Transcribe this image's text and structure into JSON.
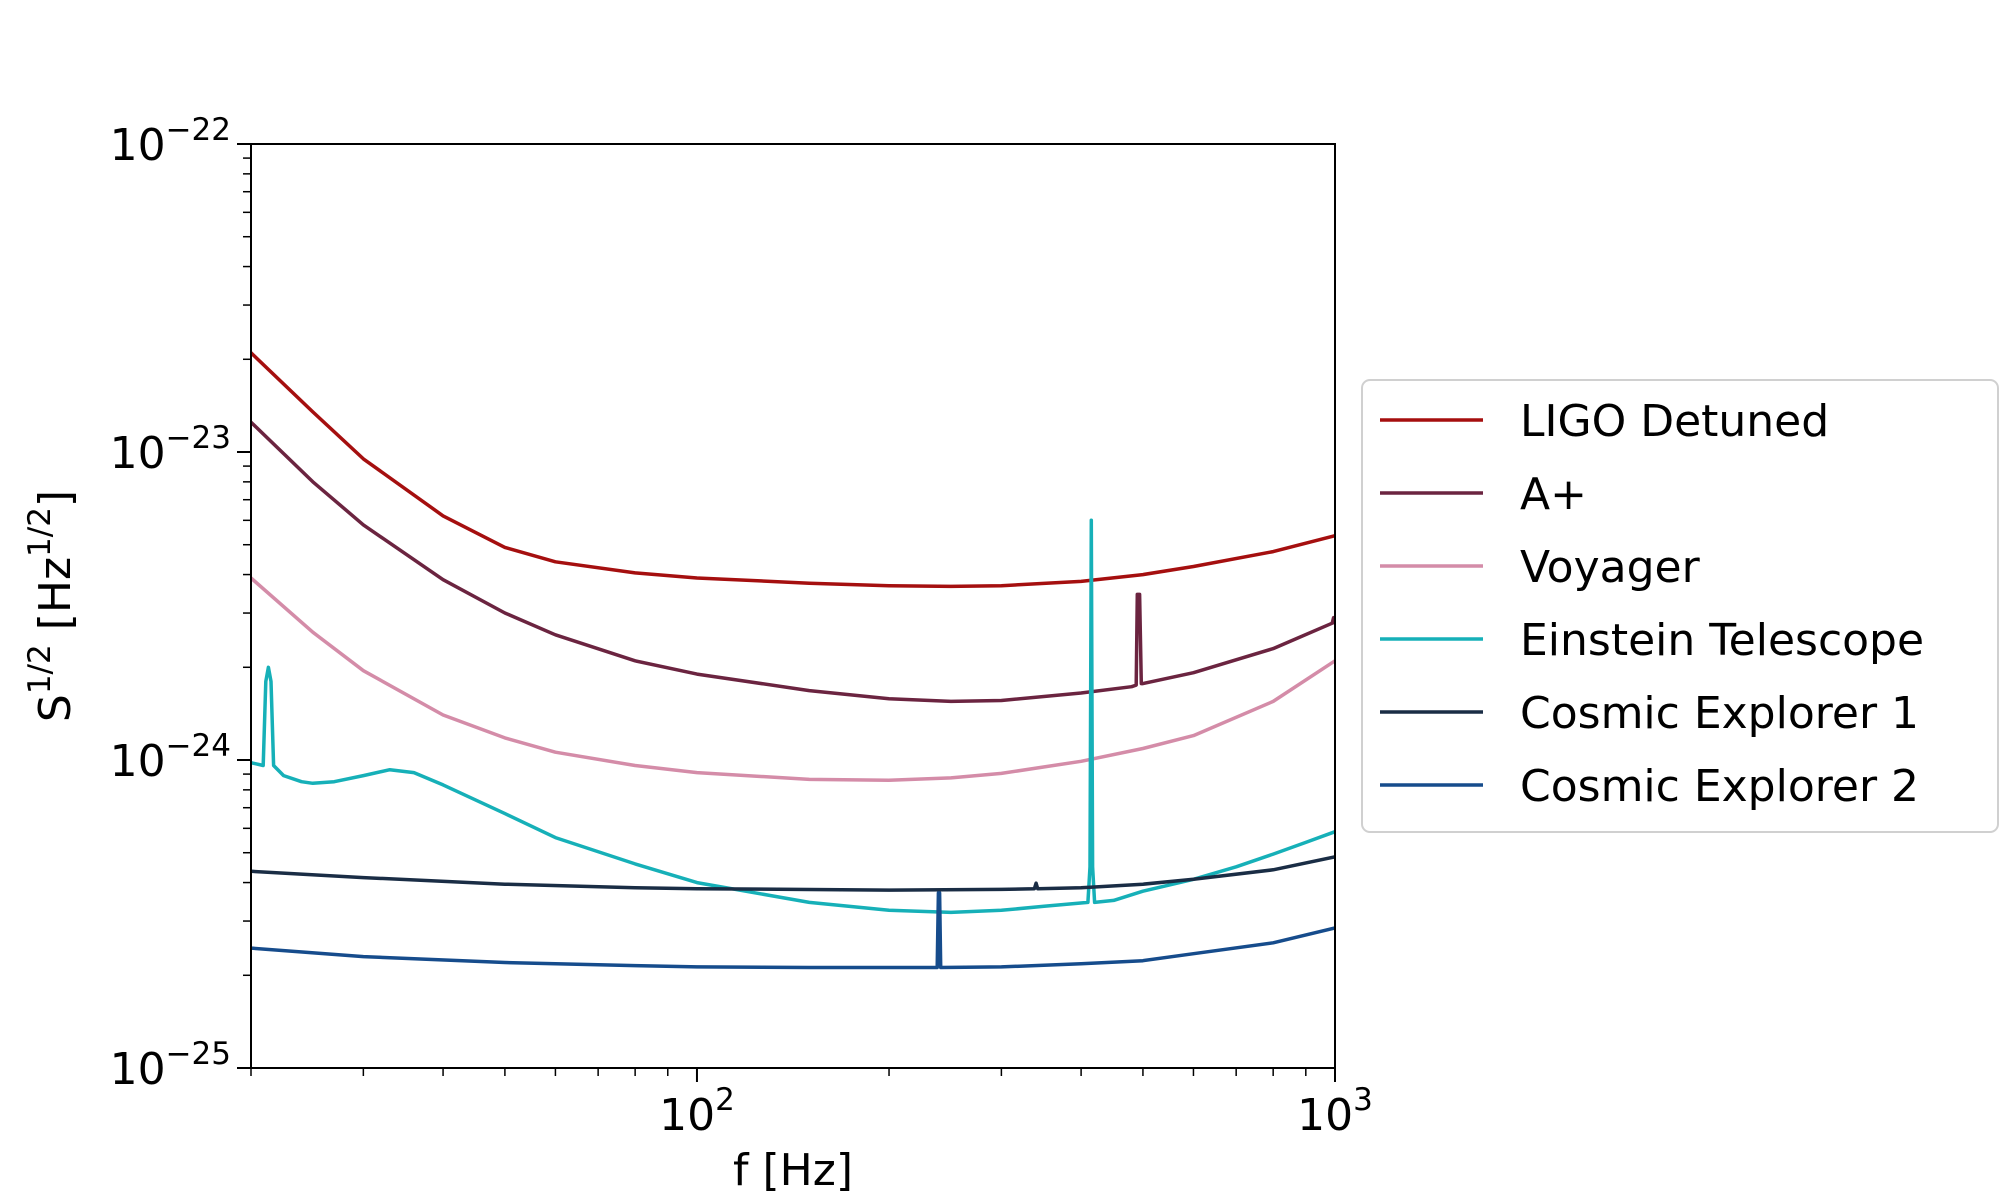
{
  "chart_data": {
    "type": "line",
    "title": "",
    "xlabel": "f [Hz]",
    "ylabel": {
      "base": "S",
      "sup": "1/2",
      "unit_open": " [Hz",
      "unit_sup": "1/2",
      "unit_close": "]"
    },
    "xscale": "log",
    "yscale": "log",
    "xlim": [
      20,
      1000
    ],
    "ylim": [
      1e-25,
      1e-22
    ],
    "grid": false,
    "legend_position": "right-outside",
    "x_ticks": [
      {
        "value": 100,
        "base": "10",
        "exp": "2"
      },
      {
        "value": 1000,
        "base": "10",
        "exp": "3"
      }
    ],
    "y_ticks": [
      {
        "value": 1e-22,
        "base": "10",
        "exp": "−22"
      },
      {
        "value": 1e-23,
        "base": "10",
        "exp": "−23"
      },
      {
        "value": 1e-24,
        "base": "10",
        "exp": "−24"
      },
      {
        "value": 1e-25,
        "base": "10",
        "exp": "−25"
      }
    ],
    "series": [
      {
        "name": "LIGO Detuned",
        "color": "#a50f0f",
        "points": [
          [
            20,
            2.1e-23
          ],
          [
            25,
            1.35e-23
          ],
          [
            30,
            9.5e-24
          ],
          [
            40,
            6.2e-24
          ],
          [
            50,
            4.9e-24
          ],
          [
            60,
            4.4e-24
          ],
          [
            80,
            4.05e-24
          ],
          [
            100,
            3.9e-24
          ],
          [
            150,
            3.75e-24
          ],
          [
            200,
            3.68e-24
          ],
          [
            250,
            3.66e-24
          ],
          [
            300,
            3.68e-24
          ],
          [
            400,
            3.8e-24
          ],
          [
            500,
            4e-24
          ],
          [
            600,
            4.25e-24
          ],
          [
            800,
            4.75e-24
          ],
          [
            1000,
            5.35e-24
          ]
        ]
      },
      {
        "name": "A+",
        "color": "#6b2440",
        "points": [
          [
            20,
            1.25e-23
          ],
          [
            25,
            8e-24
          ],
          [
            30,
            5.8e-24
          ],
          [
            40,
            3.85e-24
          ],
          [
            50,
            3e-24
          ],
          [
            60,
            2.55e-24
          ],
          [
            80,
            2.1e-24
          ],
          [
            100,
            1.9e-24
          ],
          [
            150,
            1.68e-24
          ],
          [
            200,
            1.58e-24
          ],
          [
            250,
            1.55e-24
          ],
          [
            300,
            1.56e-24
          ],
          [
            400,
            1.65e-24
          ],
          [
            480,
            1.73e-24
          ],
          [
            488,
            1.75e-24
          ],
          [
            490,
            3.45e-24
          ],
          [
            494,
            3.45e-24
          ],
          [
            497,
            1.77e-24
          ],
          [
            500,
            1.77e-24
          ],
          [
            600,
            1.92e-24
          ],
          [
            800,
            2.3e-24
          ],
          [
            990,
            2.78e-24
          ],
          [
            995,
            2.9e-24
          ],
          [
            1000,
            2.78e-24
          ]
        ]
      },
      {
        "name": "Voyager",
        "color": "#d48ca8",
        "points": [
          [
            20,
            3.9e-24
          ],
          [
            25,
            2.6e-24
          ],
          [
            30,
            1.95e-24
          ],
          [
            40,
            1.4e-24
          ],
          [
            50,
            1.18e-24
          ],
          [
            60,
            1.06e-24
          ],
          [
            80,
            9.6e-25
          ],
          [
            100,
            9.1e-25
          ],
          [
            150,
            8.65e-25
          ],
          [
            200,
            8.6e-25
          ],
          [
            250,
            8.75e-25
          ],
          [
            300,
            9.05e-25
          ],
          [
            400,
            9.9e-25
          ],
          [
            500,
            1.09e-24
          ],
          [
            600,
            1.2e-24
          ],
          [
            800,
            1.55e-24
          ],
          [
            1000,
            2.1e-24
          ]
        ]
      },
      {
        "name": "Einstein Telescope",
        "color": "#16b0b8",
        "points": [
          [
            20,
            9.8e-25
          ],
          [
            20.9,
            9.6e-25
          ],
          [
            21.1,
            1.8e-24
          ],
          [
            21.3,
            2e-24
          ],
          [
            21.5,
            1.8e-24
          ],
          [
            21.7,
            9.6e-25
          ],
          [
            22.5,
            8.9e-25
          ],
          [
            24,
            8.5e-25
          ],
          [
            25,
            8.4e-25
          ],
          [
            27,
            8.5e-25
          ],
          [
            30,
            8.9e-25
          ],
          [
            33,
            9.3e-25
          ],
          [
            36,
            9.1e-25
          ],
          [
            40,
            8.3e-25
          ],
          [
            50,
            6.7e-25
          ],
          [
            60,
            5.6e-25
          ],
          [
            80,
            4.6e-25
          ],
          [
            100,
            4e-25
          ],
          [
            150,
            3.45e-25
          ],
          [
            200,
            3.25e-25
          ],
          [
            250,
            3.2e-25
          ],
          [
            300,
            3.25e-25
          ],
          [
            350,
            3.35e-25
          ],
          [
            410,
            3.45e-25
          ],
          [
            413,
            4.5e-25
          ],
          [
            415,
            6e-24
          ],
          [
            417,
            4.5e-25
          ],
          [
            420,
            3.45e-25
          ],
          [
            450,
            3.5e-25
          ],
          [
            500,
            3.75e-25
          ],
          [
            600,
            4.1e-25
          ],
          [
            700,
            4.5e-25
          ],
          [
            800,
            4.95e-25
          ],
          [
            900,
            5.4e-25
          ],
          [
            1000,
            5.85e-25
          ]
        ]
      },
      {
        "name": "Cosmic Explorer 1",
        "color": "#1a2d45",
        "points": [
          [
            20,
            4.35e-25
          ],
          [
            30,
            4.15e-25
          ],
          [
            50,
            3.95e-25
          ],
          [
            80,
            3.85e-25
          ],
          [
            100,
            3.82e-25
          ],
          [
            200,
            3.78e-25
          ],
          [
            300,
            3.8e-25
          ],
          [
            338,
            3.82e-25
          ],
          [
            340,
            3.98e-25
          ],
          [
            342,
            3.82e-25
          ],
          [
            400,
            3.85e-25
          ],
          [
            500,
            3.95e-25
          ],
          [
            600,
            4.1e-25
          ],
          [
            800,
            4.4e-25
          ],
          [
            1000,
            4.85e-25
          ]
        ]
      },
      {
        "name": "Cosmic Explorer 2",
        "color": "#164c8c",
        "points": [
          [
            20,
            2.45e-25
          ],
          [
            30,
            2.3e-25
          ],
          [
            50,
            2.2e-25
          ],
          [
            80,
            2.15e-25
          ],
          [
            100,
            2.13e-25
          ],
          [
            150,
            2.12e-25
          ],
          [
            238,
            2.12e-25
          ],
          [
            239,
            3.7e-25
          ],
          [
            240,
            3.7e-25
          ],
          [
            241,
            2.12e-25
          ],
          [
            300,
            2.13e-25
          ],
          [
            400,
            2.18e-25
          ],
          [
            500,
            2.23e-25
          ],
          [
            600,
            2.35e-25
          ],
          [
            800,
            2.55e-25
          ],
          [
            1000,
            2.85e-25
          ]
        ]
      }
    ]
  }
}
